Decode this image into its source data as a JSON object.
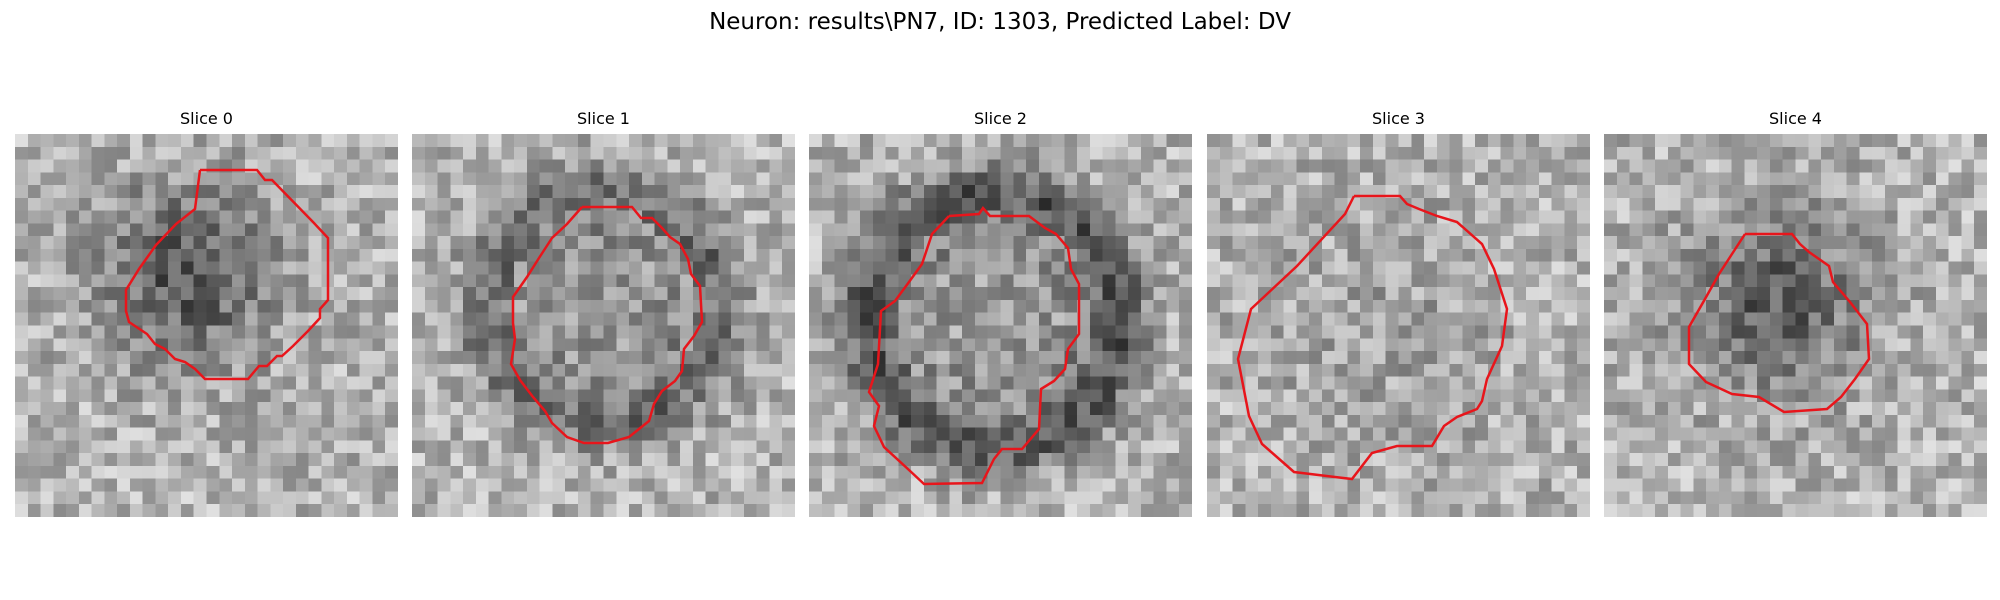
{
  "figure": {
    "title": "Neuron: results\\PN7, ID: 1303, Predicted Label: DV"
  },
  "slices": [
    {
      "title": "Slice 0"
    },
    {
      "title": "Slice 1"
    },
    {
      "title": "Slice 2"
    },
    {
      "title": "Slice 3"
    },
    {
      "title": "Slice 4"
    }
  ],
  "style": {
    "contour_color": "#e8151b",
    "colormap": "grayscale"
  }
}
